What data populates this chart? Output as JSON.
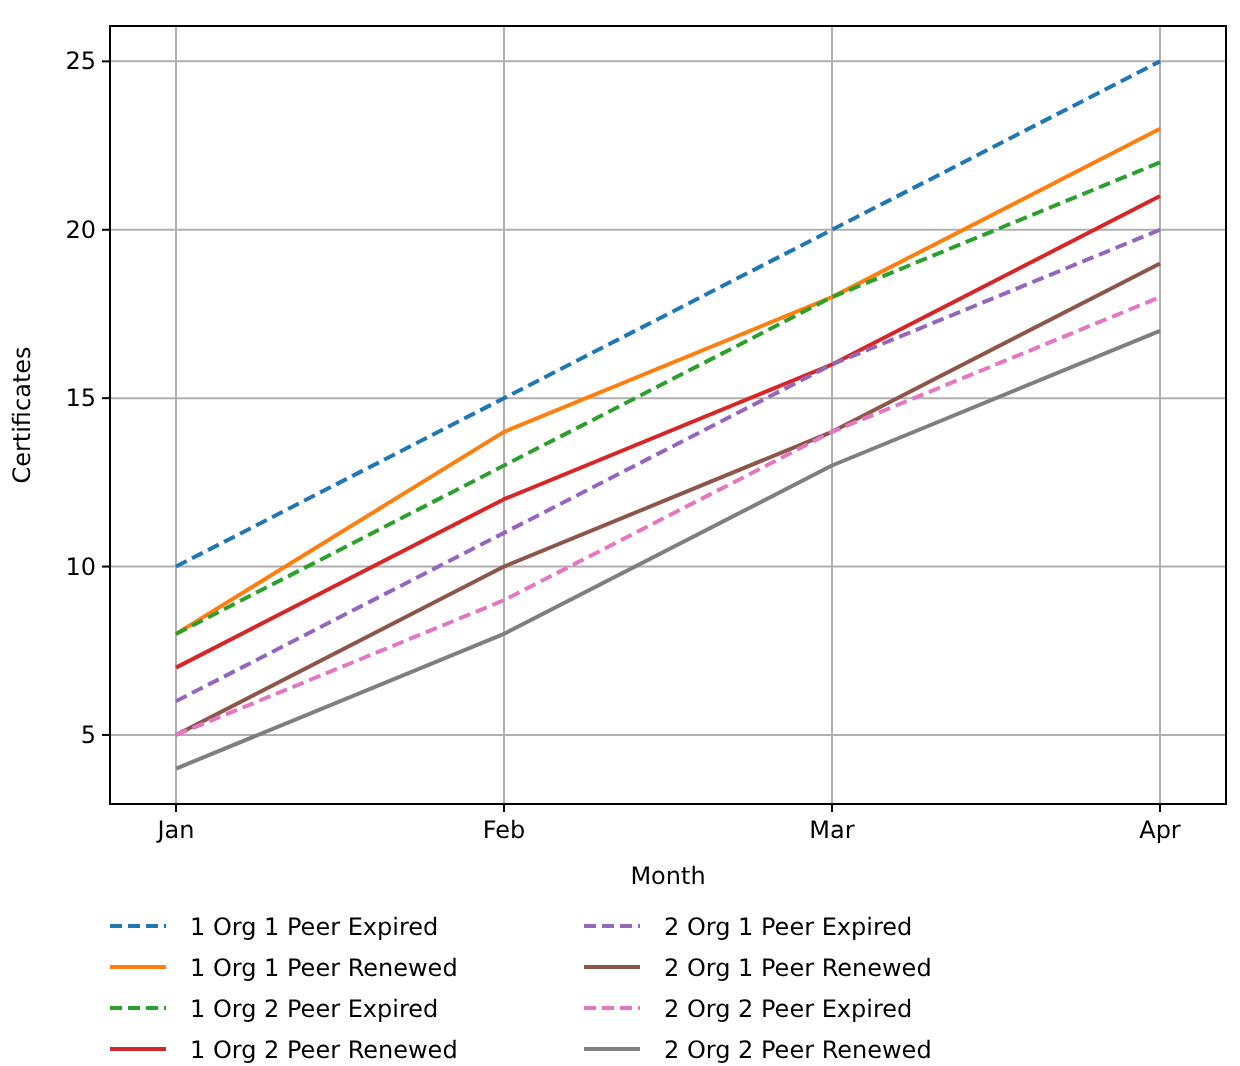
{
  "chart_data": {
    "type": "line",
    "xlabel": "Month",
    "ylabel": "Certificates",
    "categories": [
      "Jan",
      "Feb",
      "Mar",
      "Apr"
    ],
    "ylim": [
      2.95,
      26.05
    ],
    "yticks": [
      5,
      10,
      15,
      20,
      25
    ],
    "grid": true,
    "legend": "bottom",
    "series": [
      {
        "name": "1 Org 1 Peer Expired",
        "color": "#1f77b4",
        "line_style": "dashed",
        "values": [
          10,
          15,
          20,
          25
        ]
      },
      {
        "name": "1 Org 1 Peer Renewed",
        "color": "#ff7f0e",
        "line_style": "solid",
        "values": [
          8,
          14,
          18,
          23
        ]
      },
      {
        "name": "1 Org 2 Peer Expired",
        "color": "#2ca02c",
        "line_style": "dashed",
        "values": [
          8,
          13,
          18,
          22
        ]
      },
      {
        "name": "1 Org 2 Peer Renewed",
        "color": "#d62728",
        "line_style": "solid",
        "values": [
          7,
          12,
          16,
          21
        ]
      },
      {
        "name": "2 Org 1 Peer Expired",
        "color": "#9467bd",
        "line_style": "dashed",
        "values": [
          6,
          11,
          16,
          20
        ]
      },
      {
        "name": "2 Org 1 Peer Renewed",
        "color": "#8c564b",
        "line_style": "solid",
        "values": [
          5,
          10,
          14,
          19
        ]
      },
      {
        "name": "2 Org 2 Peer Expired",
        "color": "#e377c2",
        "line_style": "dashed",
        "values": [
          5,
          9,
          14,
          18
        ]
      },
      {
        "name": "2 Org 2 Peer Renewed",
        "color": "#7f7f7f",
        "line_style": "solid",
        "values": [
          4,
          8,
          13,
          17
        ]
      }
    ]
  }
}
